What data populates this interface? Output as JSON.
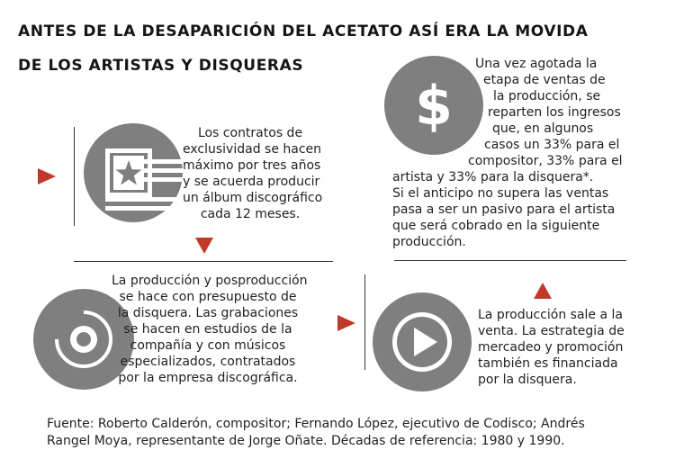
{
  "title": {
    "line1": "ANTES DE LA DESAPARICIÓN DEL ACETATO ASÍ ERA LA MOVIDA",
    "line2": "DE LOS  ARTISTAS Y DISQUERAS"
  },
  "step1": {
    "icon": "contract-star-icon",
    "lines": [
      "Los contratos de",
      "exclusividad se hacen",
      "máximo por tres años",
      "y se acuerda producir",
      "un álbum discográfico",
      "cada 12 meses."
    ]
  },
  "step2": {
    "icon": "vinyl-record-icon",
    "lines": [
      "La producción y posproducción",
      "se hace con presupuesto de",
      "la disquera. Las grabaciones",
      "se hacen en estudios de la",
      "compañía y con músicos",
      "especializados, contratados",
      "por la empresa discográfica."
    ]
  },
  "step3": {
    "icon": "play-icon",
    "lines": [
      "La producción sale a la",
      "venta. La estrategia de",
      "mercadeo y promoción",
      "también es financiada",
      "por la disquera."
    ]
  },
  "step4": {
    "icon": "dollar-icon",
    "lines": [
      "Una vez agotada la",
      "etapa de ventas de",
      "la producción, se",
      "reparten los ingresos",
      "que, en algunos",
      "casos un 33% para el",
      "compositor, 33% para el",
      "artista y 33% para la disquera*.",
      "Si el anticipo no supera las ventas",
      "pasa a ser un pasivo para el artista",
      "que será cobrado en la siguiente",
      "producción."
    ]
  },
  "footer": {
    "line1": "Fuente: Roberto Calderón, compositor; Fernando López, ejecutivo de Codisco; Andrés",
    "line2": "Rangel Moya, representante de Jorge Oñate. Décadas de referencia: 1980 y 1990."
  },
  "colors": {
    "accent": "#c0392b",
    "icon_gray": "#7f7f80"
  }
}
